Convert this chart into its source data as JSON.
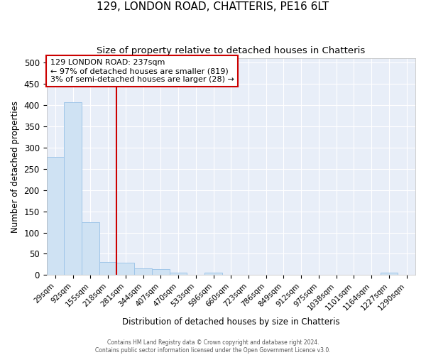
{
  "title1": "129, LONDON ROAD, CHATTERIS, PE16 6LT",
  "title2": "Size of property relative to detached houses in Chatteris",
  "xlabel": "Distribution of detached houses by size in Chatteris",
  "ylabel": "Number of detached properties",
  "categories": [
    "29sqm",
    "92sqm",
    "155sqm",
    "218sqm",
    "281sqm",
    "344sqm",
    "407sqm",
    "470sqm",
    "533sqm",
    "596sqm",
    "660sqm",
    "723sqm",
    "786sqm",
    "849sqm",
    "912sqm",
    "975sqm",
    "1038sqm",
    "1101sqm",
    "1164sqm",
    "1227sqm",
    "1290sqm"
  ],
  "values": [
    277,
    407,
    124,
    30,
    29,
    15,
    14,
    6,
    0,
    6,
    0,
    0,
    0,
    0,
    0,
    0,
    0,
    0,
    0,
    5,
    0
  ],
  "bar_color": "#cfe2f3",
  "bar_edge_color": "#9fc5e8",
  "vline_x": 3.0,
  "vline_color": "#cc0000",
  "annotation_text": "129 LONDON ROAD: 237sqm\n← 97% of detached houses are smaller (819)\n3% of semi-detached houses are larger (28) →",
  "annotation_box_color": "#ffffff",
  "annotation_box_edge": "#cc0000",
  "ylim": [
    0,
    510
  ],
  "yticks": [
    0,
    50,
    100,
    150,
    200,
    250,
    300,
    350,
    400,
    450,
    500
  ],
  "background_color": "#e8eef8",
  "grid_color": "#ffffff",
  "fig_bg": "#ffffff",
  "footer1": "Contains HM Land Registry data © Crown copyright and database right 2024.",
  "footer2": "Contains public sector information licensed under the Open Government Licence v3.0."
}
